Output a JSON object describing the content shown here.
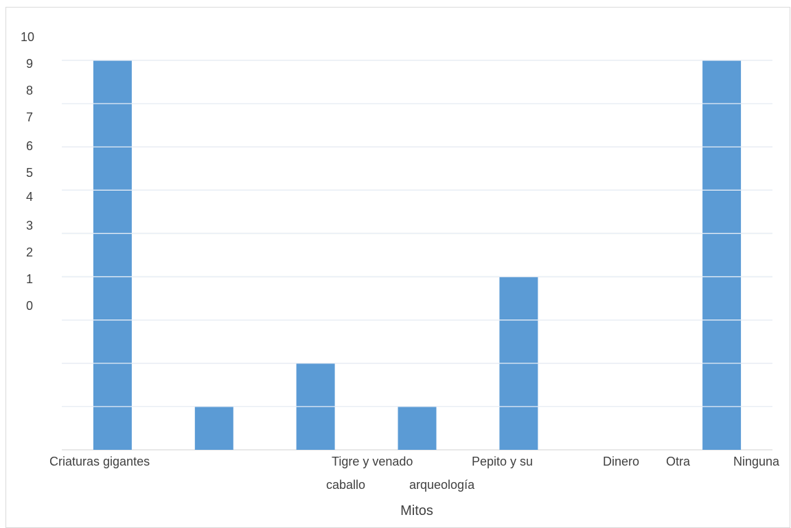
{
  "chart_data": {
    "type": "bar",
    "title": "",
    "xlabel": "Mitos",
    "ylabel": "",
    "y_tick_labels": [
      "10",
      "9",
      "8",
      "7",
      "6",
      "5",
      "4",
      "3",
      "2",
      "1",
      "0"
    ],
    "category_labels": {
      "row1": [
        "Criaturas gigantes",
        "Tigre y venado",
        "Pepito y su",
        "Dinero",
        "Otra",
        "Ninguna"
      ],
      "row2": [
        "caballo",
        "arqueología"
      ]
    },
    "categories": [
      "Criaturas gigantes",
      "(unlabeled)",
      "Tigre y venado caballo",
      "Pepito y su arqueología",
      "Dinero",
      "Otra",
      "Ninguna"
    ],
    "values": [
      9,
      1,
      2,
      1,
      4,
      0,
      9
    ],
    "ylim": [
      0,
      9
    ],
    "grid": true,
    "legend": "none",
    "colors": {
      "bar": "#5b9bd5",
      "grid": "#d9d9d9",
      "text": "#404040"
    }
  }
}
